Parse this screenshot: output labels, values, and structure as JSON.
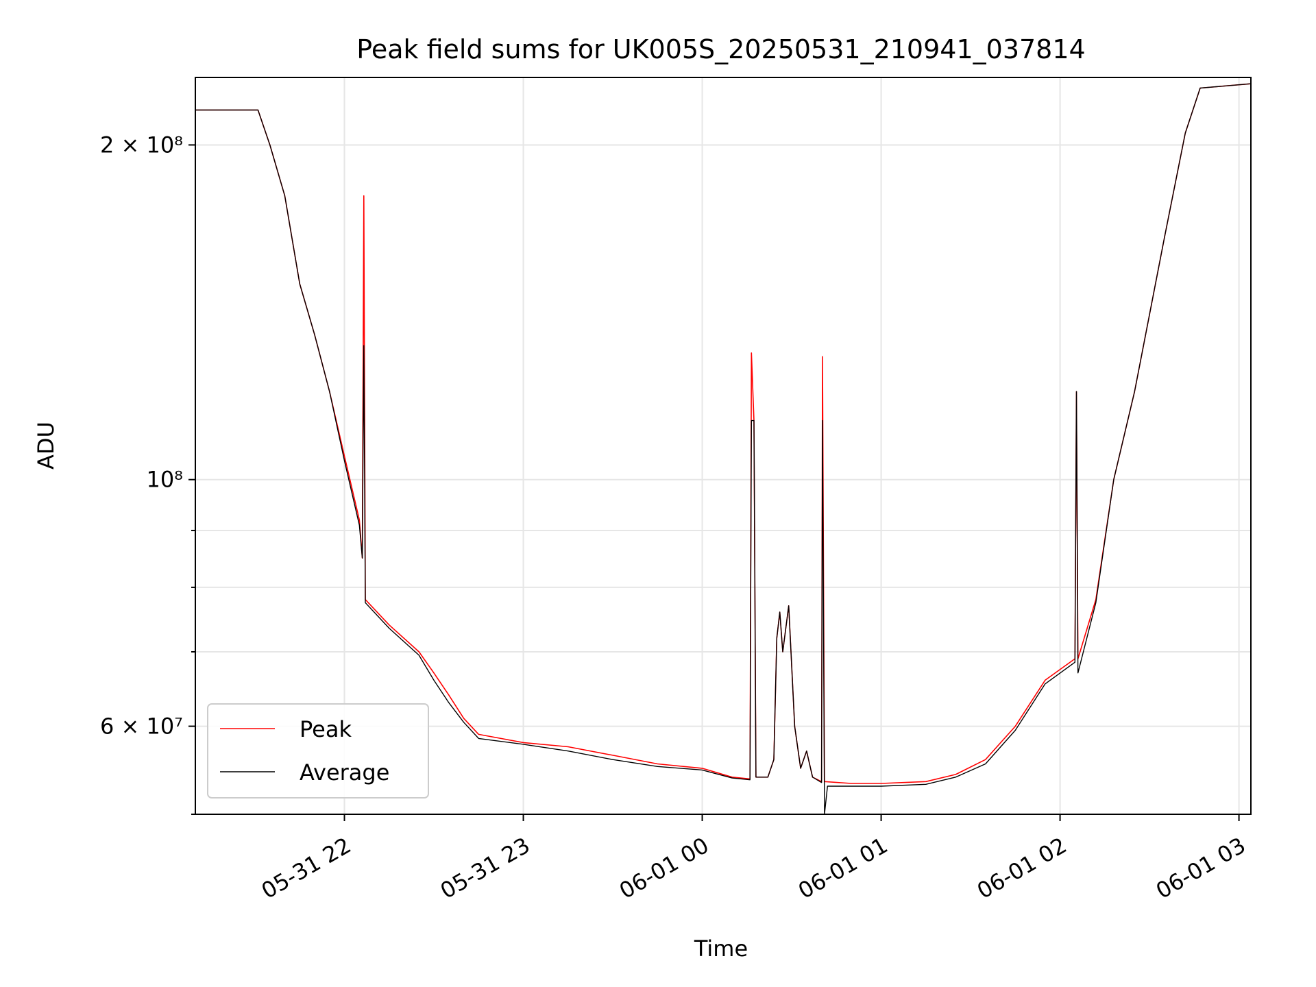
{
  "chart_data": {
    "type": "line",
    "title": "Peak field sums for UK005S_20250531_210941_037814",
    "xlabel": "Time",
    "ylabel": "ADU",
    "x_unit": "time (MM-DD HH)",
    "xlim": [
      "05-31 21:10",
      "06-01 03:04"
    ],
    "ylim": [
      50000000,
      230000000
    ],
    "yscale": "log",
    "grid": true,
    "legend_position": "lower-left",
    "x_ticks": [
      {
        "label": "05-31 22",
        "value": "05-31 22:00"
      },
      {
        "label": "05-31 23",
        "value": "05-31 23:00"
      },
      {
        "label": "06-01 00",
        "value": "06-01 00:00"
      },
      {
        "label": "06-01 01",
        "value": "06-01 01:00"
      },
      {
        "label": "06-01 02",
        "value": "06-01 02:00"
      },
      {
        "label": "06-01 03",
        "value": "06-01 03:00"
      }
    ],
    "y_ticks_major": [
      {
        "label": "2 × 10⁸",
        "value": 200000000
      },
      {
        "label": "10⁸",
        "value": 100000000
      },
      {
        "label": "6 × 10⁷",
        "value": 60000000
      }
    ],
    "y_ticks_minor": [
      50000000,
      70000000,
      80000000,
      90000000
    ],
    "series": [
      {
        "name": "Peak",
        "color": "#ff0000",
        "points": [
          [
            "05-31 21:10",
            215000000
          ],
          [
            "05-31 21:31",
            215000000
          ],
          [
            "05-31 21:35",
            200000000
          ],
          [
            "05-31 21:40",
            180000000
          ],
          [
            "05-31 21:45",
            150000000
          ],
          [
            "05-31 21:50",
            135000000
          ],
          [
            "05-31 21:55",
            120000000
          ],
          [
            "05-31 22:00",
            105000000
          ],
          [
            "05-31 22:05",
            92000000
          ],
          [
            "05-31 22:06",
            85000000
          ],
          [
            "05-31 22:06:30",
            180000000
          ],
          [
            "05-31 22:07",
            78000000
          ],
          [
            "05-31 22:15",
            74000000
          ],
          [
            "05-31 22:25",
            70000000
          ],
          [
            "05-31 22:30",
            67000000
          ],
          [
            "05-31 22:35",
            64000000
          ],
          [
            "05-31 22:40",
            61000000
          ],
          [
            "05-31 22:45",
            59000000
          ],
          [
            "05-31 23:00",
            58000000
          ],
          [
            "05-31 23:15",
            57500000
          ],
          [
            "05-31 23:30",
            56500000
          ],
          [
            "05-31 23:45",
            55500000
          ],
          [
            "06-01 00:00",
            55000000
          ],
          [
            "06-01 00:10",
            54000000
          ],
          [
            "06-01 00:16",
            53800000
          ],
          [
            "06-01 00:16:30",
            130000000
          ],
          [
            "06-01 00:17:20",
            113000000
          ],
          [
            "06-01 00:18",
            54000000
          ],
          [
            "06-01 00:22",
            54000000
          ],
          [
            "06-01 00:24",
            56000000
          ],
          [
            "06-01 00:25",
            72000000
          ],
          [
            "06-01 00:26",
            76000000
          ],
          [
            "06-01 00:27",
            70000000
          ],
          [
            "06-01 00:29",
            77000000
          ],
          [
            "06-01 00:31",
            60000000
          ],
          [
            "06-01 00:33",
            55000000
          ],
          [
            "06-01 00:35",
            57000000
          ],
          [
            "06-01 00:37",
            54000000
          ],
          [
            "06-01 00:40",
            53500000
          ],
          [
            "06-01 00:40:20",
            129000000
          ],
          [
            "06-01 00:41",
            53500000
          ],
          [
            "06-01 00:50",
            53300000
          ],
          [
            "06-01 01:00",
            53300000
          ],
          [
            "06-01 01:15",
            53500000
          ],
          [
            "06-01 01:25",
            54300000
          ],
          [
            "06-01 01:35",
            56000000
          ],
          [
            "06-01 01:45",
            60000000
          ],
          [
            "06-01 01:55",
            66000000
          ],
          [
            "06-01 02:05",
            69000000
          ],
          [
            "06-01 02:05:30",
            120000000
          ],
          [
            "06-01 02:06",
            69000000
          ],
          [
            "06-01 02:12",
            78000000
          ],
          [
            "06-01 02:18",
            100000000
          ],
          [
            "06-01 02:25",
            120000000
          ],
          [
            "06-01 02:35",
            165000000
          ],
          [
            "06-01 02:42",
            205000000
          ],
          [
            "06-01 02:47",
            225000000
          ],
          [
            "06-01 03:04",
            227000000
          ]
        ]
      },
      {
        "name": "Average",
        "color": "#000000",
        "points": [
          [
            "05-31 21:10",
            215000000
          ],
          [
            "05-31 21:31",
            215000000
          ],
          [
            "05-31 21:35",
            200000000
          ],
          [
            "05-31 21:40",
            180000000
          ],
          [
            "05-31 21:45",
            150000000
          ],
          [
            "05-31 21:50",
            135000000
          ],
          [
            "05-31 21:55",
            120000000
          ],
          [
            "05-31 22:00",
            104000000
          ],
          [
            "05-31 22:05",
            91000000
          ],
          [
            "05-31 22:06",
            85000000
          ],
          [
            "05-31 22:06:30",
            132000000
          ],
          [
            "05-31 22:07",
            77500000
          ],
          [
            "05-31 22:15",
            73500000
          ],
          [
            "05-31 22:25",
            69500000
          ],
          [
            "05-31 22:30",
            66000000
          ],
          [
            "05-31 22:35",
            63000000
          ],
          [
            "05-31 22:40",
            60500000
          ],
          [
            "05-31 22:45",
            58500000
          ],
          [
            "05-31 23:00",
            57800000
          ],
          [
            "05-31 23:15",
            57000000
          ],
          [
            "05-31 23:30",
            56000000
          ],
          [
            "05-31 23:45",
            55200000
          ],
          [
            "06-01 00:00",
            54800000
          ],
          [
            "06-01 00:10",
            53900000
          ],
          [
            "06-01 00:16",
            53700000
          ],
          [
            "06-01 00:16:30",
            113000000
          ],
          [
            "06-01 00:17:20",
            113000000
          ],
          [
            "06-01 00:18",
            54000000
          ],
          [
            "06-01 00:22",
            54000000
          ],
          [
            "06-01 00:24",
            56000000
          ],
          [
            "06-01 00:25",
            72000000
          ],
          [
            "06-01 00:26",
            76000000
          ],
          [
            "06-01 00:27",
            70000000
          ],
          [
            "06-01 00:29",
            77000000
          ],
          [
            "06-01 00:31",
            60000000
          ],
          [
            "06-01 00:33",
            55000000
          ],
          [
            "06-01 00:35",
            57000000
          ],
          [
            "06-01 00:37",
            54000000
          ],
          [
            "06-01 00:40",
            53400000
          ],
          [
            "06-01 00:40:20",
            113000000
          ],
          [
            "06-01 00:41",
            50000000
          ],
          [
            "06-01 00:42",
            53000000
          ],
          [
            "06-01 00:50",
            53000000
          ],
          [
            "06-01 01:00",
            53000000
          ],
          [
            "06-01 01:15",
            53200000
          ],
          [
            "06-01 01:25",
            54000000
          ],
          [
            "06-01 01:35",
            55500000
          ],
          [
            "06-01 01:45",
            59500000
          ],
          [
            "06-01 01:55",
            65500000
          ],
          [
            "06-01 02:05",
            68500000
          ],
          [
            "06-01 02:05:30",
            120000000
          ],
          [
            "06-01 02:06",
            67000000
          ],
          [
            "06-01 02:12",
            77500000
          ],
          [
            "06-01 02:18",
            100000000
          ],
          [
            "06-01 02:25",
            120000000
          ],
          [
            "06-01 02:35",
            165000000
          ],
          [
            "06-01 02:42",
            205000000
          ],
          [
            "06-01 02:47",
            225000000
          ],
          [
            "06-01 03:04",
            227000000
          ]
        ]
      }
    ]
  }
}
